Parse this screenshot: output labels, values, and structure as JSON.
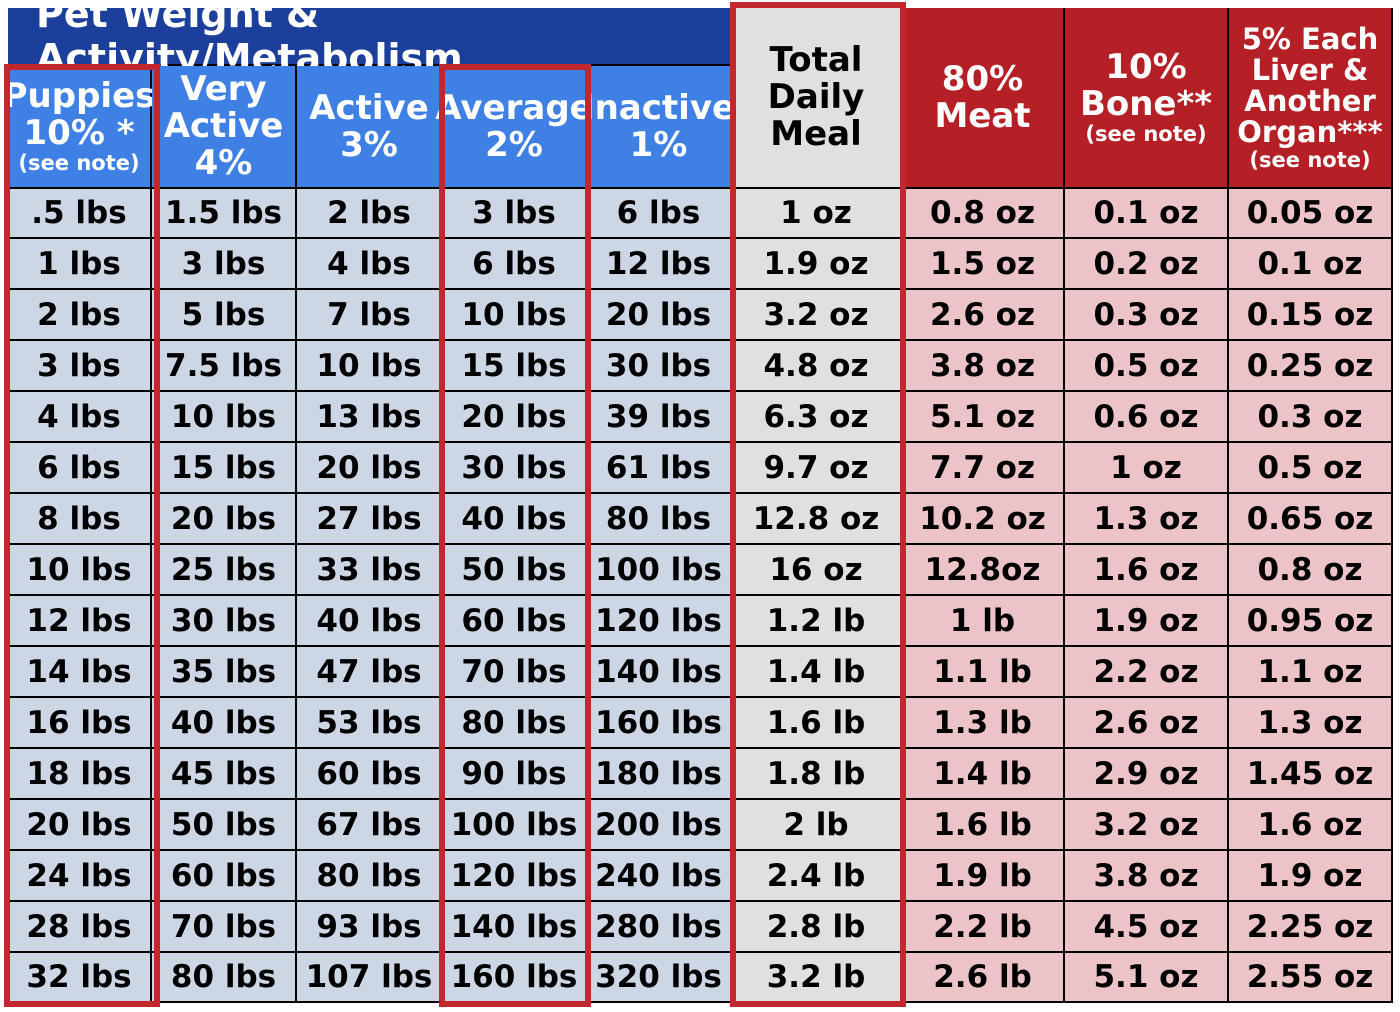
{
  "title": "Pet Weight & Activity/Metabolism",
  "headers": [
    {
      "lines": [
        "Puppies",
        "10% *"
      ],
      "note": "(see note)"
    },
    {
      "lines": [
        "Very",
        "Active",
        "4%"
      ],
      "note": ""
    },
    {
      "lines": [
        "Active",
        "3%"
      ],
      "note": ""
    },
    {
      "lines": [
        "Average",
        "2%"
      ],
      "note": ""
    },
    {
      "lines": [
        "Inactive",
        "1%"
      ],
      "note": ""
    },
    {
      "lines": [
        "Total",
        "Daily",
        "Meal"
      ],
      "note": ""
    },
    {
      "lines": [
        "80%",
        "Meat"
      ],
      "note": ""
    },
    {
      "lines": [
        "10%",
        "Bone**"
      ],
      "note": "(see note)"
    },
    {
      "lines": [
        "5% Each",
        "Liver &",
        "Another",
        "Organ***"
      ],
      "note": "(see note)"
    }
  ],
  "rows": [
    [
      ".5 lbs",
      "1.5 lbs",
      "2 lbs",
      "3 lbs",
      "6 lbs",
      "1 oz",
      "0.8 oz",
      "0.1 oz",
      "0.05 oz"
    ],
    [
      "1 lbs",
      "3 lbs",
      "4 lbs",
      "6 lbs",
      "12 lbs",
      "1.9 oz",
      "1.5 oz",
      "0.2 oz",
      "0.1 oz"
    ],
    [
      "2 lbs",
      "5 lbs",
      "7 lbs",
      "10 lbs",
      "20 lbs",
      "3.2 oz",
      "2.6 oz",
      "0.3 oz",
      "0.15 oz"
    ],
    [
      "3 lbs",
      "7.5 lbs",
      "10 lbs",
      "15 lbs",
      "30 lbs",
      "4.8 oz",
      "3.8 oz",
      "0.5 oz",
      "0.25 oz"
    ],
    [
      "4 lbs",
      "10 lbs",
      "13 lbs",
      "20 lbs",
      "39 lbs",
      "6.3 oz",
      "5.1 oz",
      "0.6 oz",
      "0.3 oz"
    ],
    [
      "6 lbs",
      "15 lbs",
      "20 lbs",
      "30 lbs",
      "61 lbs",
      "9.7 oz",
      "7.7 oz",
      "1 oz",
      "0.5 oz"
    ],
    [
      "8 lbs",
      "20 lbs",
      "27 lbs",
      "40 lbs",
      "80 lbs",
      "12.8 oz",
      "10.2 oz",
      "1.3 oz",
      "0.65 oz"
    ],
    [
      "10 lbs",
      "25 lbs",
      "33 lbs",
      "50 lbs",
      "100 lbs",
      "16 oz",
      "12.8oz",
      "1.6 oz",
      "0.8 oz"
    ],
    [
      "12 lbs",
      "30 lbs",
      "40 lbs",
      "60 lbs",
      "120 lbs",
      "1.2 lb",
      "1 lb",
      "1.9 oz",
      "0.95 oz"
    ],
    [
      "14 lbs",
      "35 lbs",
      "47 lbs",
      "70 lbs",
      "140 lbs",
      "1.4 lb",
      "1.1 lb",
      "2.2 oz",
      "1.1 oz"
    ],
    [
      "16 lbs",
      "40 lbs",
      "53 lbs",
      "80 lbs",
      "160 lbs",
      "1.6 lb",
      "1.3 lb",
      "2.6 oz",
      "1.3 oz"
    ],
    [
      "18 lbs",
      "45 lbs",
      "60 lbs",
      "90 lbs",
      "180 lbs",
      "1.8 lb",
      "1.4 lb",
      "2.9 oz",
      "1.45 oz"
    ],
    [
      "20 lbs",
      "50 lbs",
      "67 lbs",
      "100 lbs",
      "200 lbs",
      "2 lb",
      "1.6 lb",
      "3.2 oz",
      "1.6 oz"
    ],
    [
      "24 lbs",
      "60 lbs",
      "80 lbs",
      "120 lbs",
      "240 lbs",
      "2.4 lb",
      "1.9 lb",
      "3.8 oz",
      "1.9 oz"
    ],
    [
      "28 lbs",
      "70 lbs",
      "93 lbs",
      "140 lbs",
      "280 lbs",
      "2.8 lb",
      "2.2 lb",
      "4.5 oz",
      "2.25 oz"
    ],
    [
      "32 lbs",
      "80 lbs",
      "107 lbs",
      "160 lbs",
      "320 lbs",
      "3.2 lb",
      "2.6 lb",
      "5.1 oz",
      "2.55 oz"
    ]
  ],
  "colors": {
    "title_bg": "#1b3f9a",
    "header_blue": "#3f80e5",
    "header_red": "#b42025",
    "cell_blue": "#cdd6e4",
    "cell_grey": "#e0e0e0",
    "cell_pink": "#ecc4c8",
    "highlight": "#c1272d"
  }
}
